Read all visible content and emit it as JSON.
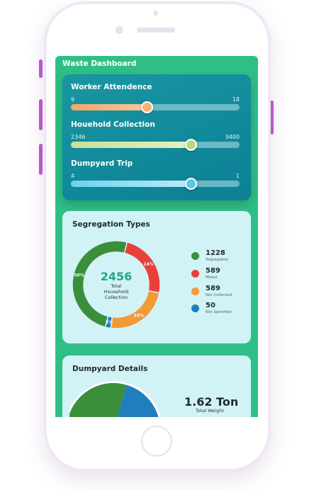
{
  "app": {
    "title": "Waste Dashboard"
  },
  "sliders": [
    {
      "label": "Worker Attendence",
      "min": "9",
      "max": "18",
      "level": 0.45,
      "color_from": "#f3a764",
      "color_to": "#f8c89a",
      "thumb_color": "#f4b07a"
    },
    {
      "label": "Houehold Collection",
      "min": "2346",
      "max": "3400",
      "level": 0.71,
      "color_from": "#c8e09a",
      "color_to": "#e5f0c4",
      "thumb_color": "#b9d983"
    },
    {
      "label": "Dumpyard Trip",
      "min": "4",
      "max": "1",
      "level": 0.71,
      "color_from": "#6fd2ee",
      "color_to": "#b8ecf8",
      "thumb_color": "#5bc8ea"
    }
  ],
  "segregation": {
    "title": "Segregation Types",
    "total": "2456",
    "total_label_1": "Total",
    "total_label_2": "Household",
    "total_label_3": "Collection",
    "legend": [
      {
        "value": "1228",
        "label": "Segregated",
        "color": "#3b8f3a",
        "icon": "green-dot-icon"
      },
      {
        "value": "589",
        "label": "Mixed",
        "color": "#e8403a",
        "icon": "red-dot-icon"
      },
      {
        "value": "589",
        "label": "Not Collected",
        "color": "#f39a36",
        "icon": "orange-dot-icon"
      },
      {
        "value": "50",
        "label": "Not Specified",
        "color": "#1f7fbd",
        "icon": "blue-dot-icon"
      }
    ]
  },
  "chart_data": [
    {
      "type": "pie",
      "categories": [
        "Segregated",
        "Mixed",
        "Not Collected",
        "Not Specified"
      ],
      "values": [
        50,
        24,
        24,
        2
      ],
      "data_labels": [
        "50%",
        "24%",
        "24%",
        "2%"
      ],
      "colors": [
        "#3b8f3a",
        "#e8403a",
        "#f39a36",
        "#1f7fbd"
      ],
      "title": "Segregation Types"
    },
    {
      "type": "pie",
      "title": "Dumpyard Details",
      "colors": [
        "#3b8f3a",
        "#1f7fbd"
      ]
    }
  ],
  "dumpyard": {
    "title": "Dumpyard Details",
    "weight": "1.62 Ton",
    "weight_label": "Total Weight"
  }
}
